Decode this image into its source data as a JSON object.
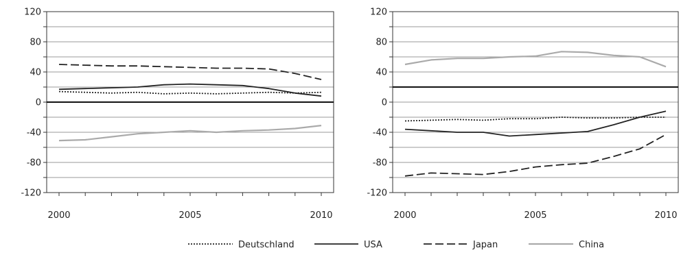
{
  "chart_data": [
    {
      "type": "line",
      "title": "",
      "xlabel": "",
      "ylabel": "",
      "xlim": [
        2000,
        2010
      ],
      "ylim": [
        -120,
        120
      ],
      "x_ticks": [
        "2000",
        "2005",
        "2010"
      ],
      "y_ticks": [
        "120",
        "80",
        "40",
        "0",
        "-40",
        "-80",
        "-120"
      ],
      "grid": true,
      "reference_line": 0,
      "x": [
        2000,
        2001,
        2002,
        2003,
        2004,
        2005,
        2006,
        2007,
        2008,
        2009,
        2010
      ],
      "series": [
        {
          "name": "Deutschland",
          "values": [
            14,
            13,
            12,
            13,
            11,
            12,
            11,
            12,
            13,
            12,
            13
          ]
        },
        {
          "name": "USA",
          "values": [
            17,
            18,
            19,
            20,
            23,
            24,
            23,
            22,
            18,
            12,
            8
          ]
        },
        {
          "name": "Japan",
          "values": [
            50,
            49,
            48,
            48,
            47,
            46,
            45,
            45,
            44,
            38,
            30
          ]
        },
        {
          "name": "China",
          "values": [
            -51,
            -50,
            -46,
            -42,
            -40,
            -38,
            -40,
            -38,
            -37,
            -35,
            -31
          ]
        }
      ]
    },
    {
      "type": "line",
      "title": "",
      "xlabel": "",
      "ylabel": "",
      "xlim": [
        2000,
        2010
      ],
      "ylim": [
        -120,
        120
      ],
      "x_ticks": [
        "2000",
        "2005",
        "2010"
      ],
      "y_ticks": [
        "120",
        "80",
        "40",
        "0",
        "-40",
        "-80",
        "-120"
      ],
      "grid": true,
      "reference_line": 20,
      "x": [
        2000,
        2001,
        2002,
        2003,
        2004,
        2005,
        2006,
        2007,
        2008,
        2009,
        2010
      ],
      "series": [
        {
          "name": "Deutschland",
          "values": [
            -25,
            -24,
            -23,
            -24,
            -22,
            -22,
            -20,
            -21,
            -21,
            -20,
            -20
          ]
        },
        {
          "name": "USA",
          "values": [
            -36,
            -38,
            -40,
            -40,
            -45,
            -43,
            -41,
            -39,
            -30,
            -20,
            -12
          ]
        },
        {
          "name": "Japan",
          "values": [
            -98,
            -94,
            -95,
            -96,
            -92,
            -86,
            -83,
            -81,
            -72,
            -62,
            -43
          ]
        },
        {
          "name": "China",
          "values": [
            50,
            56,
            58,
            58,
            60,
            61,
            67,
            66,
            62,
            60,
            47
          ]
        }
      ]
    }
  ],
  "legend": {
    "placement": "bottom",
    "items": [
      {
        "label": "Deutschland",
        "color": "#222222",
        "dash": "dotted"
      },
      {
        "label": "USA",
        "color": "#222222",
        "dash": "solid"
      },
      {
        "label": "Japan",
        "color": "#222222",
        "dash": "dashed"
      },
      {
        "label": "China",
        "color": "#aaaaaa",
        "dash": "solid"
      }
    ]
  }
}
